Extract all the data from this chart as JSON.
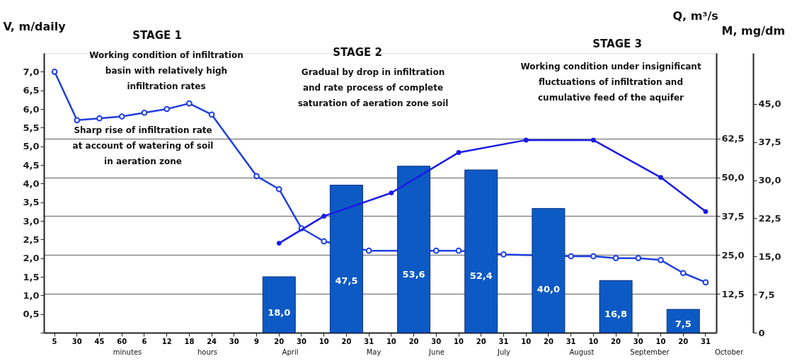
{
  "chart_data": {
    "type": "bar",
    "ylabel": "V, m/daily",
    "y2label": "Q, m³/s",
    "y3label": "M, mg/dm",
    "categories": [
      "5",
      "30",
      "45",
      "60",
      "6",
      "12",
      "18",
      "24",
      "30",
      "9",
      "20",
      "30",
      "10",
      "20",
      "31",
      "10",
      "20",
      "30",
      "10",
      "20",
      "31",
      "10",
      "20",
      "31",
      "10",
      "20",
      "30",
      "10",
      "20",
      "31"
    ],
    "series": [
      {
        "axis": "y2",
        "color": "#0d5ac4",
        "values": [
          null,
          null,
          null,
          null,
          null,
          null,
          null,
          null,
          null,
          null,
          18.0,
          null,
          null,
          47.5,
          null,
          null,
          53.6,
          null,
          null,
          52.4,
          null,
          null,
          40.0,
          null,
          null,
          16.8,
          null,
          null,
          7.5,
          null
        ],
        "value_labels": [
          null,
          null,
          null,
          null,
          null,
          null,
          null,
          null,
          null,
          null,
          "18,0",
          null,
          null,
          "47,5",
          null,
          null,
          "53,6",
          null,
          null,
          "52,4",
          null,
          null,
          "40,0",
          null,
          null,
          "16,8",
          null,
          null,
          "7,5",
          null
        ]
      },
      {
        "type": "line",
        "axis": "y",
        "color": "#1f3fe0",
        "marker": "circle",
        "line_style": "solid",
        "values": [
          7.0,
          5.7,
          5.75,
          5.8,
          5.9,
          6.0,
          6.15,
          5.85,
          null,
          4.2,
          3.85,
          2.8,
          2.45,
          null,
          2.2,
          null,
          null,
          2.2,
          2.2,
          null,
          2.1,
          null,
          null,
          2.05,
          2.05,
          2.0,
          2.0,
          1.95,
          1.6,
          1.35
        ]
      },
      {
        "type": "line",
        "axis": "y2",
        "color": "#1a1ae6",
        "marker": "circle",
        "line_style": "solid",
        "values": [
          null,
          null,
          null,
          null,
          null,
          null,
          null,
          null,
          null,
          null,
          28.8,
          null,
          37.5,
          null,
          null,
          45,
          null,
          null,
          58,
          null,
          null,
          62,
          null,
          null,
          62,
          null,
          null,
          50,
          null,
          39
        ]
      }
    ],
    "ylim": [
      0,
      7.5
    ],
    "yticks": [
      {
        "value": 0,
        "label": null
      },
      {
        "value": 0.5,
        "label": "0,5"
      },
      {
        "value": 1.0,
        "label": "1,0"
      },
      {
        "value": 1.5,
        "label": "1,5"
      },
      {
        "value": 2.0,
        "label": "2,0"
      },
      {
        "value": 2.5,
        "label": "2,5"
      },
      {
        "value": 3.0,
        "label": "3,0"
      },
      {
        "value": 3.5,
        "label": "3,5"
      },
      {
        "value": 4.0,
        "label": "4,0"
      },
      {
        "value": 4.5,
        "label": "4,5"
      },
      {
        "value": 5.0,
        "label": "5,0"
      },
      {
        "value": 5.5,
        "label": "5,5"
      },
      {
        "value": 6.0,
        "label": "6,0"
      },
      {
        "value": 6.5,
        "label": "6,5"
      },
      {
        "value": 7.0,
        "label": "7,0"
      }
    ],
    "y2lim": [
      0,
      90
    ],
    "y2ticks": [
      {
        "value": 12.5,
        "label": "12,5"
      },
      {
        "value": 25,
        "label": "25,0"
      },
      {
        "value": 37.5,
        "label": "37,5"
      },
      {
        "value": 50,
        "label": "50,0"
      },
      {
        "value": 62.5,
        "label": "62,5"
      }
    ],
    "y3lim": [
      0,
      55
    ],
    "y3ticks": [
      0,
      {
        "value": 7.5,
        "label": "7,5"
      },
      {
        "value": 15,
        "label": "15,0"
      },
      {
        "value": 22.5,
        "label": "22,5"
      },
      {
        "value": 30,
        "label": "30,0"
      },
      {
        "value": 37.5,
        "label": "37,5"
      },
      {
        "value": 45,
        "label": "45,0"
      }
    ],
    "grid": "y2",
    "annotations": [
      "STAGE 1",
      "STAGE 2",
      "STAGE 3",
      "Working condition of infiltration\nbasin with relatively high\ninfiltration rates",
      "Sharp rise of infiltration rate\nat account of watering of soil\nin aeration zone",
      "Gradual by drop in infiltration\nand rate process of complete\nsaturation of aeration zone soil",
      "Working condition under insignificant\nfluctuations of infiltration and\ncumulative feed of the aquifer",
      "minutes",
      "hours",
      "April",
      "May",
      "June",
      "July",
      "August",
      "September",
      "October"
    ]
  }
}
